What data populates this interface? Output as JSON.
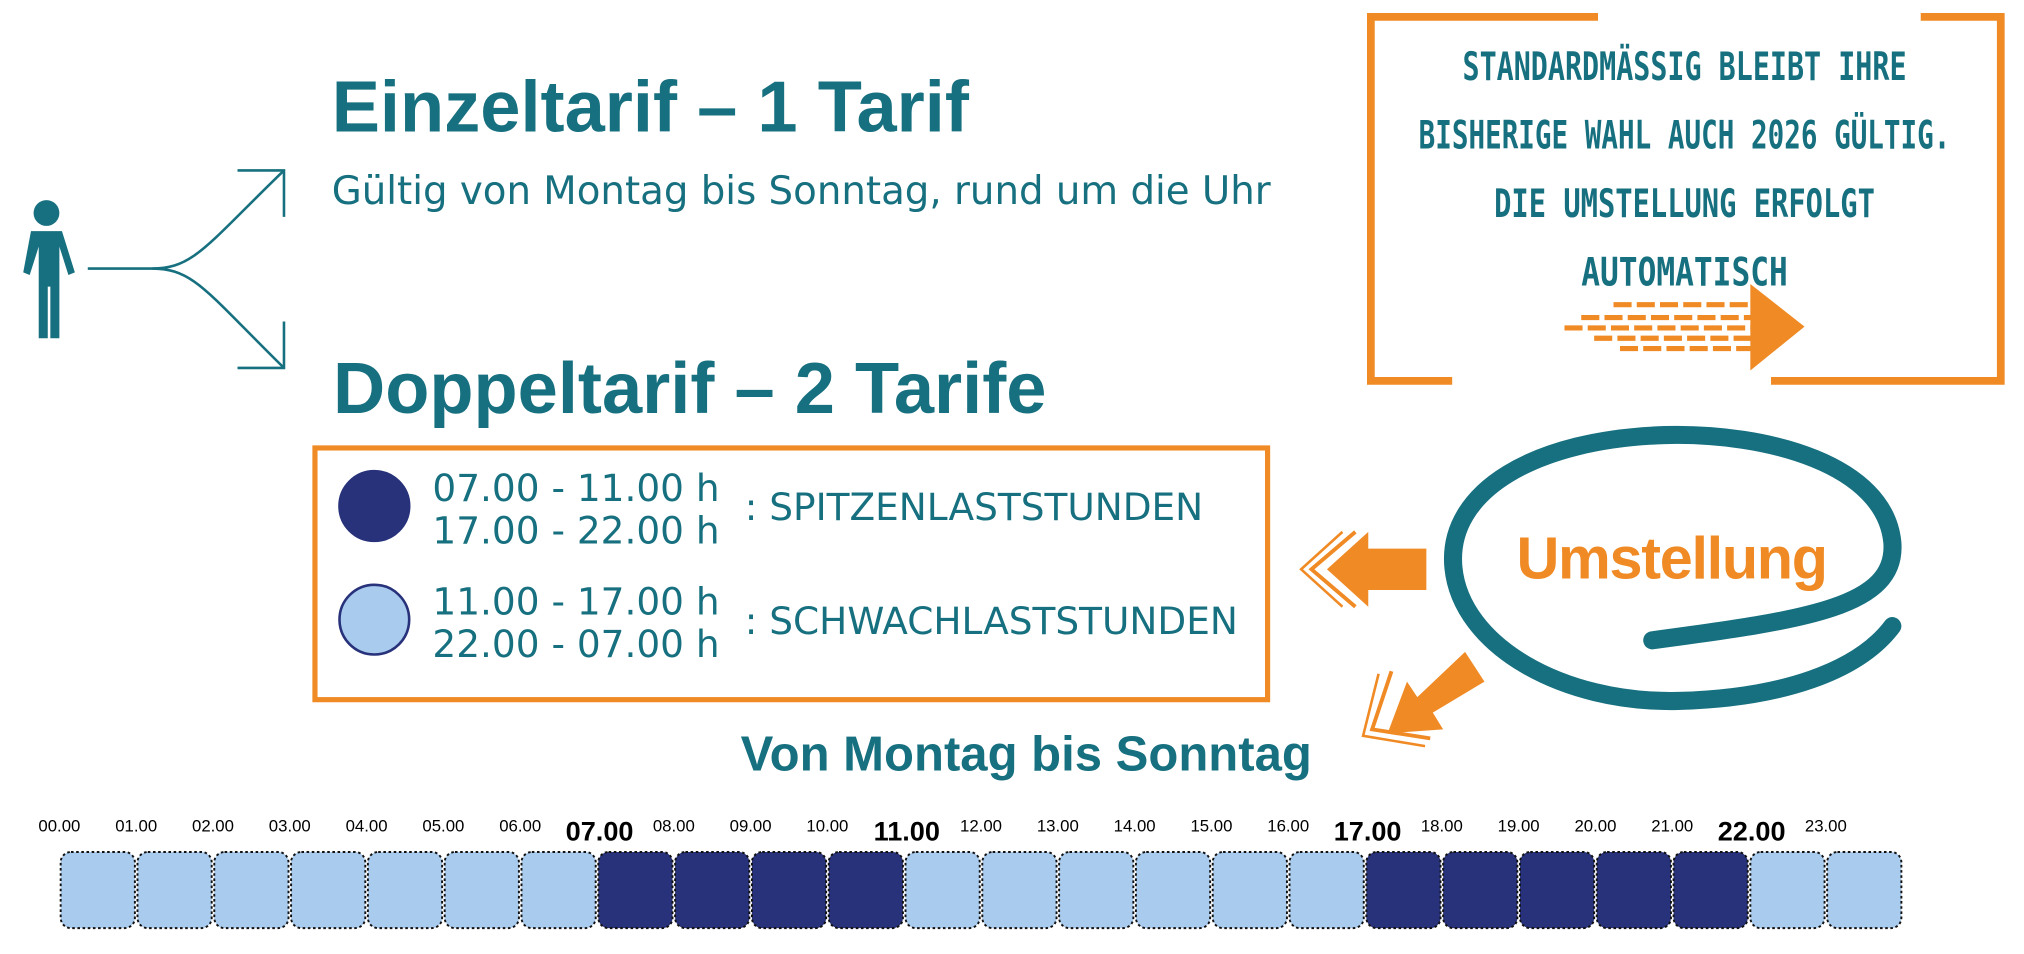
{
  "header": {
    "single_title": "Einzeltarif – 1 Tarif",
    "single_subtitle": "Gültig von Montag bis Sonntag, rund um die Uhr",
    "double_title": "Doppeltarif – 2 Tarife"
  },
  "legend": [
    {
      "times": [
        "07.00 - 11.00 h",
        "17.00 - 22.00 h"
      ],
      "label": ": SPITZENLASTSTUNDEN",
      "color": "#27327a"
    },
    {
      "times": [
        "11.00 - 17.00 h",
        "22.00 - 07.00 h"
      ],
      "label": ": SCHWACHLASTSTUNDEN",
      "color": "#a9cbee"
    }
  ],
  "notice": [
    "STANDARDMÄSSIG BLEIBT IHRE",
    "BISHERIGE WAHL AUCH 2026 GÜLTIG.",
    "DIE UMSTELLUNG ERFOLGT",
    "AUTOMATISCH"
  ],
  "switch_label": "Umstellung",
  "timeline": {
    "title": "Von Montag bis Sonntag",
    "hours": [
      {
        "label": "00.00",
        "color": "#a9cbee"
      },
      {
        "label": "01.00",
        "color": "#a9cbee"
      },
      {
        "label": "02.00",
        "color": "#a9cbee"
      },
      {
        "label": "03.00",
        "color": "#a9cbee"
      },
      {
        "label": "04.00",
        "color": "#a9cbee"
      },
      {
        "label": "05.00",
        "color": "#a9cbee"
      },
      {
        "label": "06.00",
        "color": "#a9cbee"
      },
      {
        "label": "07.00",
        "color": "#27327a",
        "bold": true
      },
      {
        "label": "08.00",
        "color": "#27327a"
      },
      {
        "label": "09.00",
        "color": "#27327a"
      },
      {
        "label": "10.00",
        "color": "#27327a"
      },
      {
        "label": "11.00",
        "color": "#a9cbee",
        "bold": true
      },
      {
        "label": "12.00",
        "color": "#a9cbee"
      },
      {
        "label": "13.00",
        "color": "#a9cbee"
      },
      {
        "label": "14.00",
        "color": "#a9cbee"
      },
      {
        "label": "15.00",
        "color": "#a9cbee"
      },
      {
        "label": "16.00",
        "color": "#a9cbee"
      },
      {
        "label": "17.00",
        "color": "#27327a",
        "bold": true
      },
      {
        "label": "18.00",
        "color": "#27327a"
      },
      {
        "label": "19.00",
        "color": "#27327a"
      },
      {
        "label": "20.00",
        "color": "#27327a"
      },
      {
        "label": "21.00",
        "color": "#27327a"
      },
      {
        "label": "22.00",
        "color": "#a9cbee",
        "bold": true
      },
      {
        "label": "23.00",
        "color": "#a9cbee"
      }
    ]
  }
}
